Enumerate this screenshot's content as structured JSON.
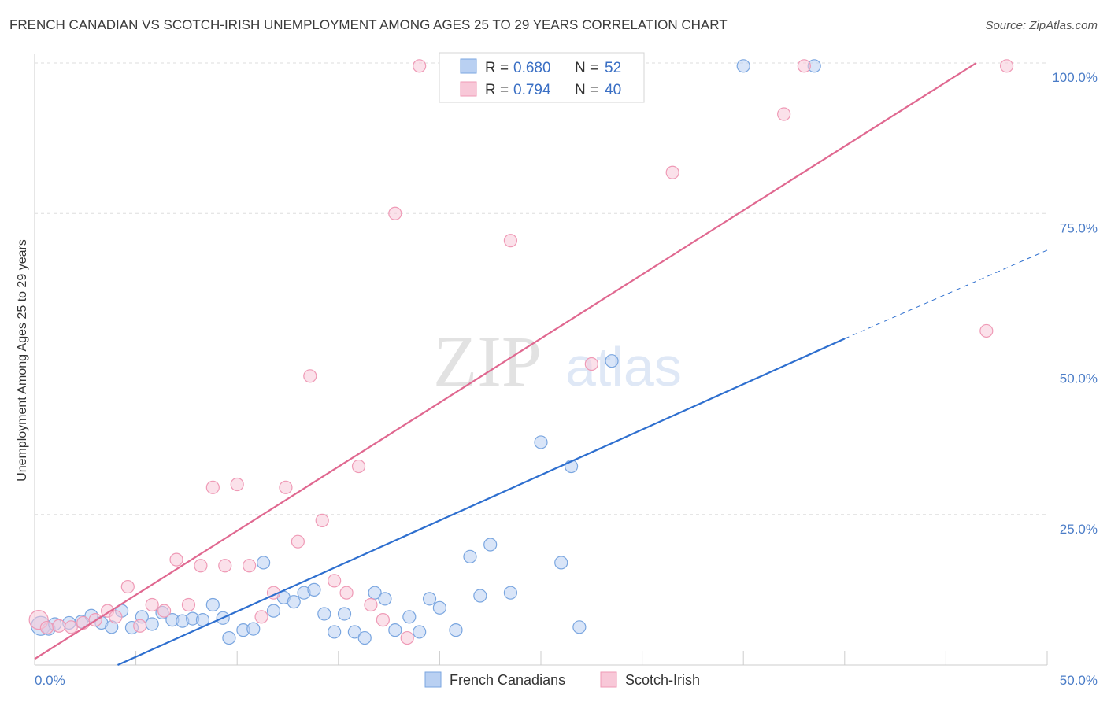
{
  "chart_data": {
    "type": "scatter",
    "title": "FRENCH CANADIAN VS SCOTCH-IRISH UNEMPLOYMENT AMONG AGES 25 TO 29 YEARS CORRELATION CHART",
    "source": "Source: ZipAtlas.com",
    "xlabel": "",
    "ylabel": "Unemployment Among Ages 25 to 29 years",
    "xlim": [
      0,
      50
    ],
    "ylim": [
      0,
      100
    ],
    "x_tick_labels": [
      "0.0%",
      "50.0%"
    ],
    "y_tick_values": [
      25,
      50,
      75,
      100
    ],
    "y_tick_labels": [
      "25.0%",
      "50.0%",
      "75.0%",
      "100.0%"
    ],
    "watermark": {
      "zip": "ZIP",
      "atlas": "atlas"
    },
    "legend_stats": [
      {
        "r_label": "R =",
        "r_value": "0.680",
        "n_label": "N =",
        "n_value": "52"
      },
      {
        "r_label": "R =",
        "r_value": "0.794",
        "n_label": "N =",
        "n_value": "40"
      }
    ],
    "series": [
      {
        "name": "French Canadians",
        "color": "#7aa6e0",
        "fill": "#b9d0f2",
        "line_color": "#2e6fcf",
        "trend": {
          "x0": 4.1,
          "y0": 0,
          "x1": 40,
          "y1": 54.2,
          "dash_to_x": 50,
          "dash_to_y": 68.9
        },
        "points": [
          [
            0.3,
            6.5
          ],
          [
            0.7,
            6.0
          ],
          [
            1.0,
            6.8
          ],
          [
            1.7,
            7.0
          ],
          [
            2.3,
            7.2
          ],
          [
            2.8,
            8.2
          ],
          [
            3.3,
            7.0
          ],
          [
            3.8,
            6.3
          ],
          [
            4.3,
            9.0
          ],
          [
            4.8,
            6.2
          ],
          [
            5.3,
            8.0
          ],
          [
            5.8,
            6.8
          ],
          [
            6.3,
            8.7
          ],
          [
            6.8,
            7.5
          ],
          [
            7.3,
            7.3
          ],
          [
            7.8,
            7.7
          ],
          [
            8.3,
            7.5
          ],
          [
            8.8,
            10.0
          ],
          [
            9.3,
            7.8
          ],
          [
            9.6,
            4.5
          ],
          [
            10.3,
            5.8
          ],
          [
            10.8,
            6.0
          ],
          [
            11.3,
            17.0
          ],
          [
            11.8,
            9.0
          ],
          [
            12.3,
            11.2
          ],
          [
            12.8,
            10.5
          ],
          [
            13.3,
            12.0
          ],
          [
            13.8,
            12.5
          ],
          [
            14.3,
            8.5
          ],
          [
            14.8,
            5.5
          ],
          [
            15.3,
            8.5
          ],
          [
            15.8,
            5.5
          ],
          [
            16.3,
            4.5
          ],
          [
            16.8,
            12.0
          ],
          [
            17.3,
            11.0
          ],
          [
            17.8,
            5.8
          ],
          [
            18.5,
            8.0
          ],
          [
            19.0,
            5.5
          ],
          [
            19.5,
            11.0
          ],
          [
            20.0,
            9.5
          ],
          [
            20.8,
            5.8
          ],
          [
            21.5,
            18.0
          ],
          [
            22.0,
            11.5
          ],
          [
            22.5,
            20.0
          ],
          [
            23.5,
            12.0
          ],
          [
            25.0,
            37.0
          ],
          [
            26.0,
            17.0
          ],
          [
            26.5,
            33.0
          ],
          [
            26.9,
            6.3
          ],
          [
            28.5,
            50.5
          ],
          [
            35.0,
            99.5
          ],
          [
            38.5,
            99.5
          ]
        ]
      },
      {
        "name": "Scotch-Irish",
        "color": "#ef9ab6",
        "fill": "#f8c8d8",
        "line_color": "#e06890",
        "trend": {
          "x0": 0,
          "y0": 1.0,
          "x1": 46.5,
          "y1": 100,
          "dash_to_x": 46.5,
          "dash_to_y": 100
        },
        "points": [
          [
            0.2,
            7.5
          ],
          [
            0.6,
            6.2
          ],
          [
            1.2,
            6.5
          ],
          [
            1.8,
            6.3
          ],
          [
            2.4,
            7.0
          ],
          [
            3.0,
            7.5
          ],
          [
            3.6,
            9.0
          ],
          [
            4.0,
            8.0
          ],
          [
            4.6,
            13.0
          ],
          [
            5.2,
            6.5
          ],
          [
            5.8,
            10.0
          ],
          [
            6.4,
            9.0
          ],
          [
            7.0,
            17.5
          ],
          [
            7.6,
            10.0
          ],
          [
            8.2,
            16.5
          ],
          [
            8.8,
            29.5
          ],
          [
            9.4,
            16.5
          ],
          [
            10.0,
            30.0
          ],
          [
            10.6,
            16.5
          ],
          [
            11.2,
            8.0
          ],
          [
            11.8,
            12.0
          ],
          [
            12.4,
            29.5
          ],
          [
            13.0,
            20.5
          ],
          [
            13.6,
            48.0
          ],
          [
            14.2,
            24.0
          ],
          [
            14.8,
            14.0
          ],
          [
            15.4,
            12.0
          ],
          [
            16.0,
            33.0
          ],
          [
            16.6,
            10.0
          ],
          [
            17.2,
            7.5
          ],
          [
            17.8,
            75.0
          ],
          [
            18.4,
            4.5
          ],
          [
            19.0,
            99.5
          ],
          [
            23.5,
            70.5
          ],
          [
            27.5,
            50.0
          ],
          [
            31.5,
            81.8
          ],
          [
            37.0,
            91.5
          ],
          [
            38.0,
            99.5
          ],
          [
            47.0,
            55.5
          ],
          [
            48.0,
            99.5
          ]
        ]
      }
    ]
  }
}
